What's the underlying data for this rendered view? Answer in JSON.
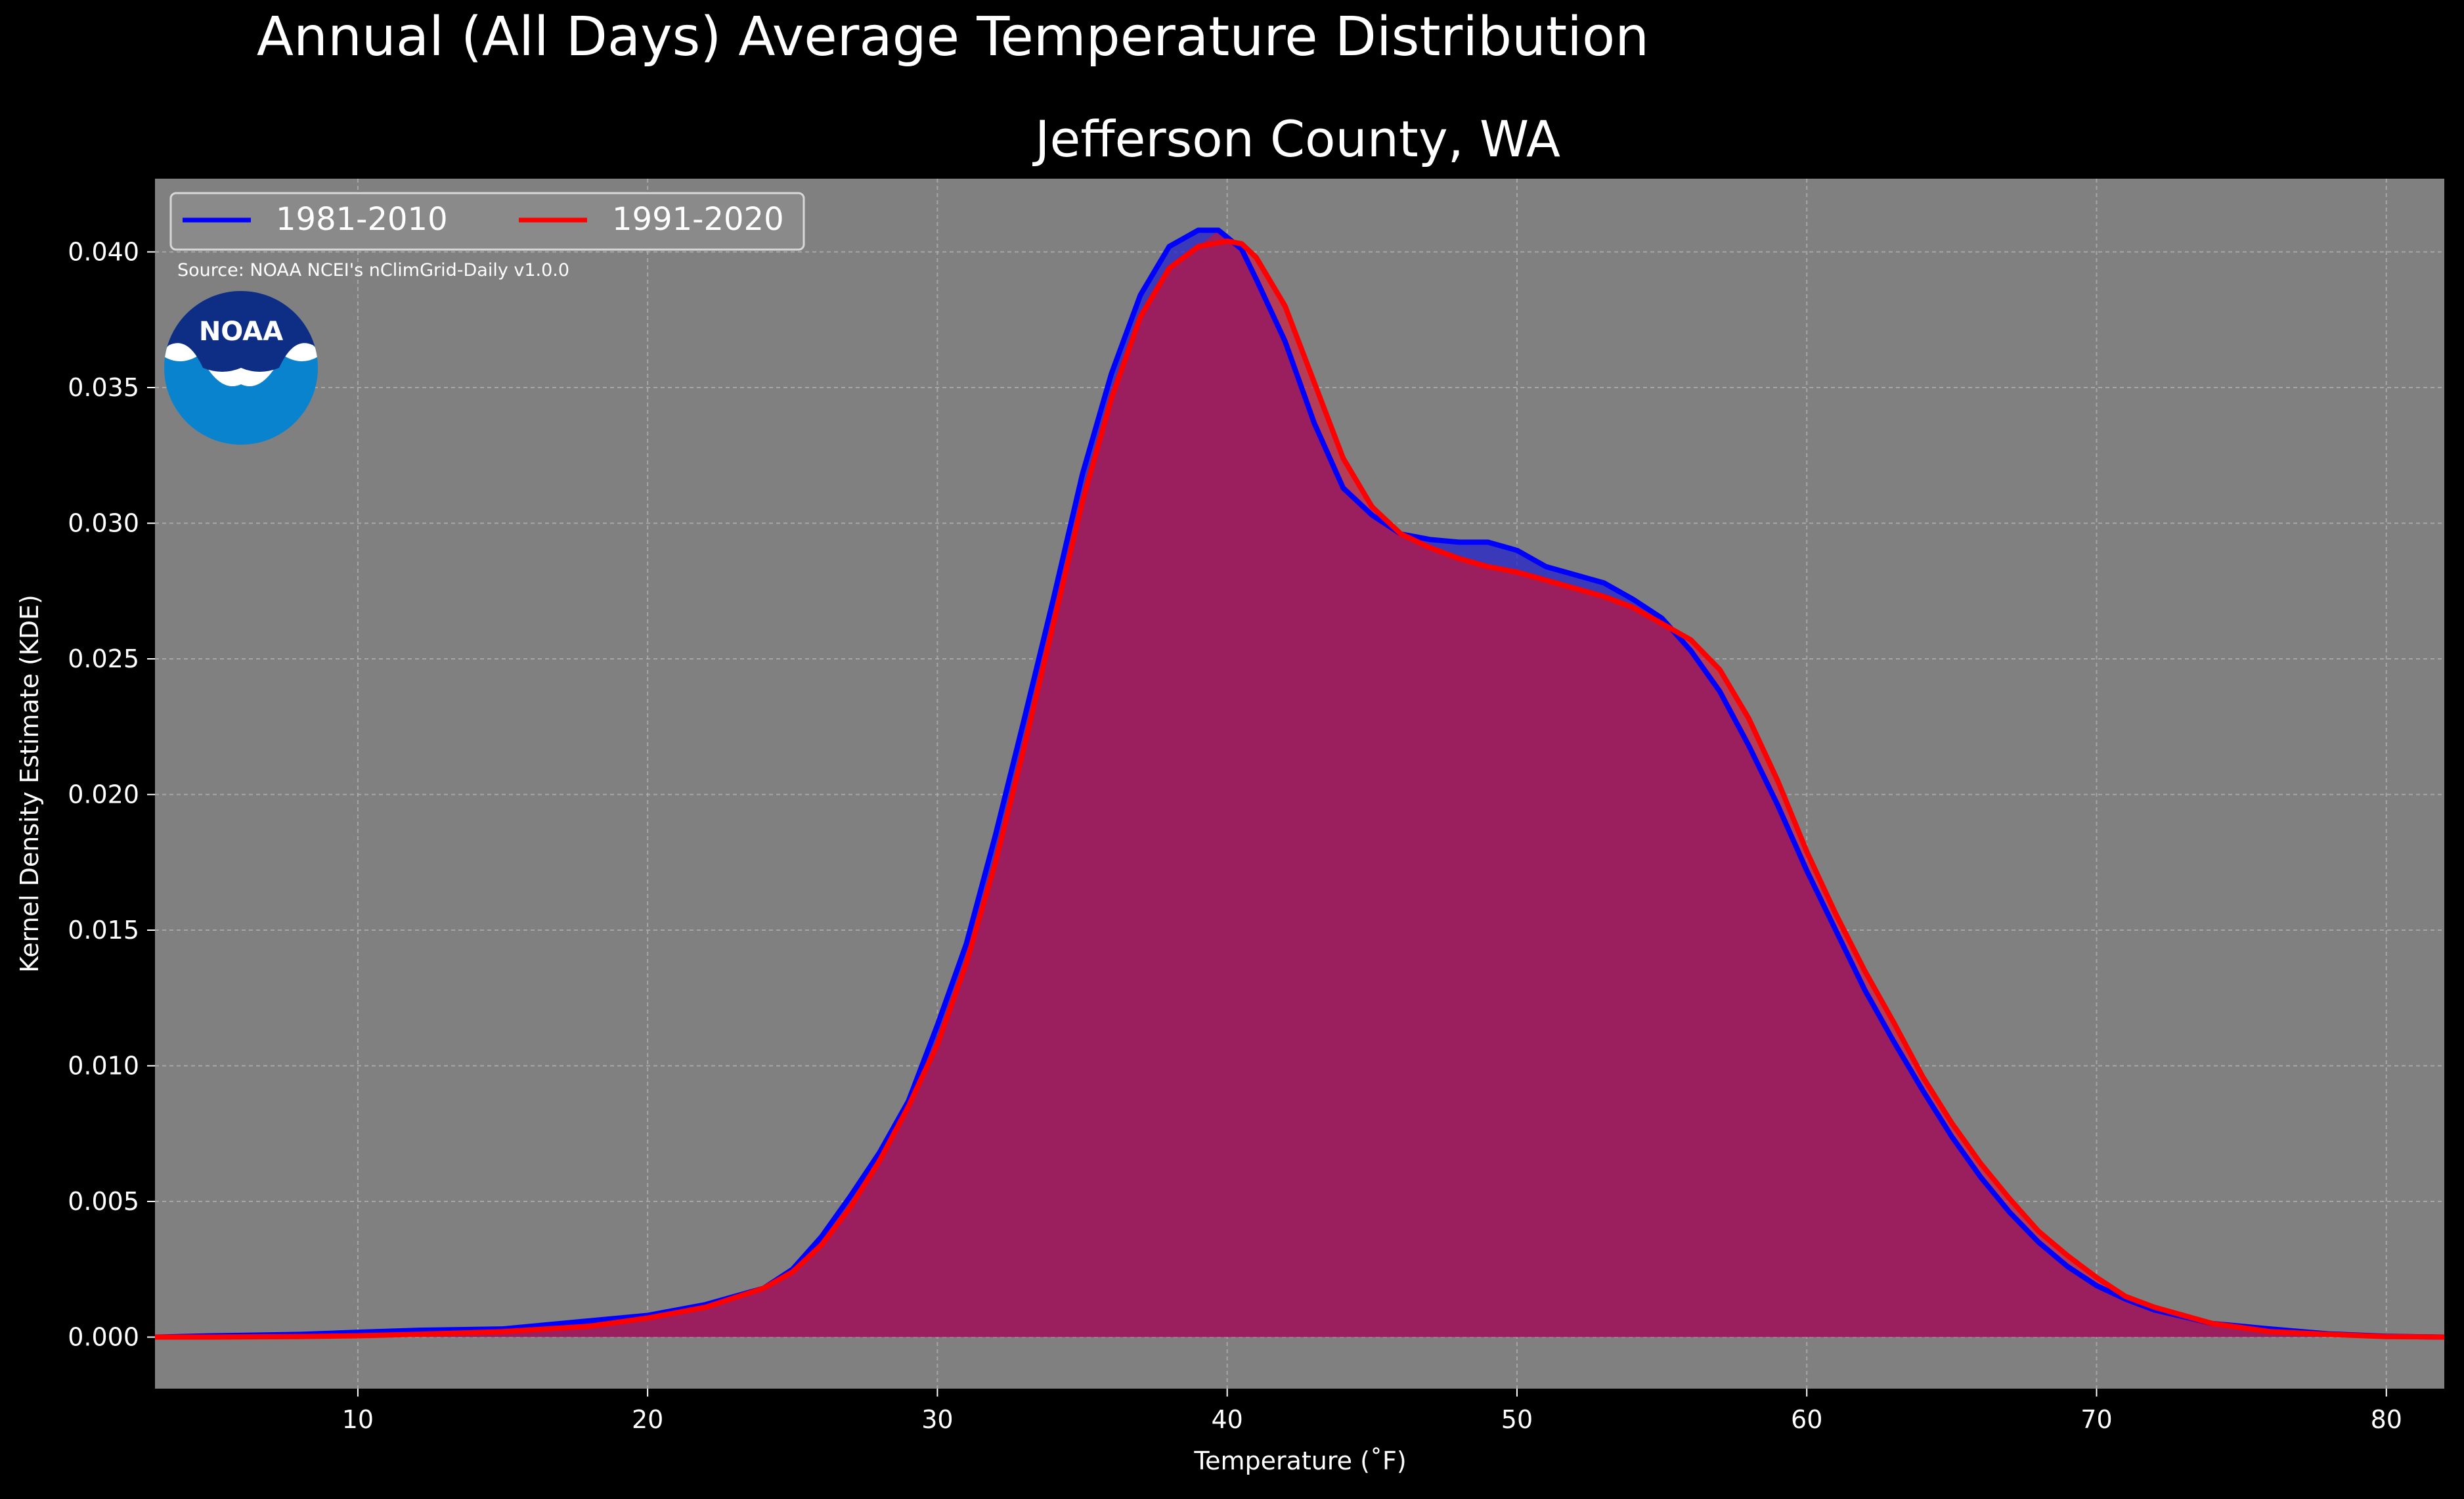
{
  "chart_data": {
    "type": "area",
    "title": "Annual (All Days) Average Temperature Distribution",
    "subtitle": "Jefferson County, WA",
    "xlabel": "Temperature ($^\\circ$F)",
    "xlabel_display": "Temperature (˚F)",
    "ylabel": "Kernel Density Estimate (KDE)",
    "xlim": [
      3,
      82
    ],
    "ylim": [
      -0.0019,
      0.0427
    ],
    "xticks": [
      10,
      20,
      30,
      40,
      50,
      60,
      70,
      80
    ],
    "xtick_labels": [
      "10",
      "20",
      "30",
      "40",
      "50",
      "60",
      "70",
      "80"
    ],
    "yticks": [
      0.0,
      0.005,
      0.01,
      0.015,
      0.02,
      0.025,
      0.03,
      0.035,
      0.04
    ],
    "ytick_labels": [
      "0.000",
      "0.005",
      "0.010",
      "0.015",
      "0.020",
      "0.025",
      "0.030",
      "0.035",
      "0.040"
    ],
    "grid": true,
    "legend_placement": "upper-left",
    "source_note": "Source: NOAA NCEI's nClimGrid-Daily v1.0.0",
    "logo_text": "NOAA",
    "colors": {
      "figure_bg": "#000000",
      "axes_bg": "#808080",
      "grid": "#b0b0b0",
      "text": "#ffffff",
      "fill": "#9b1f5e"
    },
    "series": [
      {
        "name": "1981-2010",
        "color": "#0000ff",
        "fill": "#2222cc",
        "x": [
          3,
          5,
          8,
          10,
          12,
          15,
          18,
          20,
          22,
          24,
          25,
          26,
          27,
          28,
          29,
          30,
          31,
          32,
          33,
          34,
          35,
          36,
          37,
          38,
          39,
          39.7,
          40.5,
          41,
          42,
          43,
          44,
          45,
          46,
          47,
          48,
          49,
          50,
          51,
          52,
          53,
          54,
          55,
          56,
          57,
          58,
          59,
          60,
          61,
          62,
          63,
          64,
          65,
          66,
          67,
          68,
          69,
          70,
          71,
          72,
          74,
          76,
          78,
          80,
          82
        ],
        "y": [
          0.0,
          5e-05,
          0.0001,
          0.00018,
          0.00025,
          0.0003,
          0.0006,
          0.0008,
          0.0012,
          0.0018,
          0.0025,
          0.0037,
          0.0052,
          0.0068,
          0.0087,
          0.0115,
          0.0145,
          0.0185,
          0.0228,
          0.0272,
          0.0318,
          0.0355,
          0.0384,
          0.0402,
          0.0408,
          0.0408,
          0.0401,
          0.039,
          0.0367,
          0.0337,
          0.0313,
          0.0303,
          0.0296,
          0.0294,
          0.0293,
          0.0293,
          0.029,
          0.0284,
          0.0281,
          0.0278,
          0.0272,
          0.0265,
          0.0253,
          0.0238,
          0.0218,
          0.0196,
          0.0172,
          0.015,
          0.0128,
          0.0109,
          0.0091,
          0.0074,
          0.0059,
          0.0046,
          0.0035,
          0.0026,
          0.0019,
          0.0014,
          0.001,
          0.0005,
          0.0003,
          0.00012,
          3e-05,
          0.0
        ]
      },
      {
        "name": "1991-2020",
        "color": "#ff0000",
        "fill": "#cc2244",
        "x": [
          3,
          5,
          8,
          10,
          12,
          15,
          18,
          20,
          22,
          24,
          25,
          26,
          27,
          28,
          29,
          30,
          31,
          32,
          33,
          34,
          35,
          36,
          37,
          38,
          39,
          40,
          40.5,
          41,
          42,
          43,
          44,
          45,
          46,
          47,
          48,
          49,
          50,
          51,
          52,
          53,
          54,
          55,
          56,
          57,
          58,
          59,
          60,
          61,
          62,
          63,
          64,
          65,
          66,
          67,
          68,
          69,
          70,
          71,
          72,
          74,
          76,
          78,
          80,
          82
        ],
        "y": [
          0.0,
          0.0,
          2e-05,
          5e-05,
          0.0001,
          0.0002,
          0.0004,
          0.0007,
          0.0011,
          0.0018,
          0.0024,
          0.0034,
          0.0048,
          0.0065,
          0.0085,
          0.0108,
          0.0138,
          0.0175,
          0.0218,
          0.0263,
          0.0308,
          0.0346,
          0.0376,
          0.0394,
          0.0402,
          0.0404,
          0.0403,
          0.0398,
          0.038,
          0.0352,
          0.0324,
          0.0306,
          0.0296,
          0.0291,
          0.0287,
          0.0284,
          0.0282,
          0.0279,
          0.0276,
          0.0273,
          0.0269,
          0.0263,
          0.0257,
          0.0246,
          0.0228,
          0.0205,
          0.0179,
          0.0156,
          0.0135,
          0.0116,
          0.0096,
          0.0079,
          0.0064,
          0.0051,
          0.0039,
          0.003,
          0.0022,
          0.0015,
          0.0011,
          0.0005,
          0.0002,
          0.0001,
          2e-05,
          0.0
        ]
      }
    ]
  }
}
